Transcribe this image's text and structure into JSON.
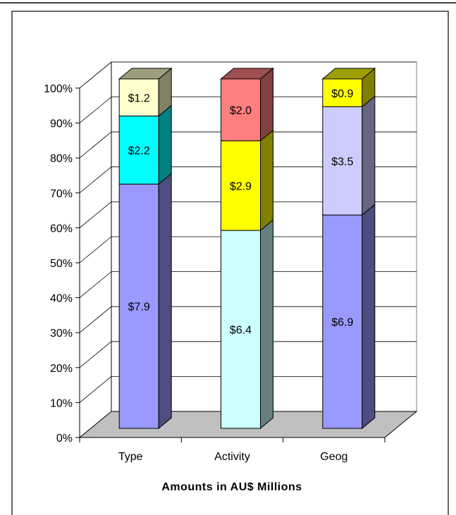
{
  "chart_data": {
    "type": "bar",
    "stacked": true,
    "percent_stacked": true,
    "three_d": true,
    "categories": [
      "Type",
      "Activity",
      "Geog"
    ],
    "series": [
      {
        "values": [
          7.9,
          6.4,
          6.9
        ],
        "labels": [
          "$7.9",
          "$6.4",
          "$6.9"
        ],
        "colors": [
          "#9999ff",
          "#ccffff",
          "#9999ff"
        ]
      },
      {
        "values": [
          2.2,
          2.9,
          3.5
        ],
        "labels": [
          "$2.2",
          "$2.9",
          "$3.5"
        ],
        "colors": [
          "#00ffff",
          "#ffff00",
          "#ccccff"
        ]
      },
      {
        "values": [
          1.2,
          2.0,
          0.9
        ],
        "labels": [
          "$1.2",
          "$2.0",
          "$0.9"
        ],
        "colors": [
          "#ffffcc",
          "#ff7f7f",
          "#ffff00"
        ]
      }
    ],
    "yticks": [
      "0%",
      "10%",
      "20%",
      "30%",
      "40%",
      "50%",
      "60%",
      "70%",
      "80%",
      "90%",
      "100%"
    ],
    "ylim": [
      0,
      100
    ],
    "xlabel": "Amounts in AU$ Millions",
    "ylabel": "",
    "grid": true,
    "legend": "none",
    "colors": {
      "floor": "#c0c0c0",
      "grid": "#000000",
      "outline": "#000000"
    }
  }
}
